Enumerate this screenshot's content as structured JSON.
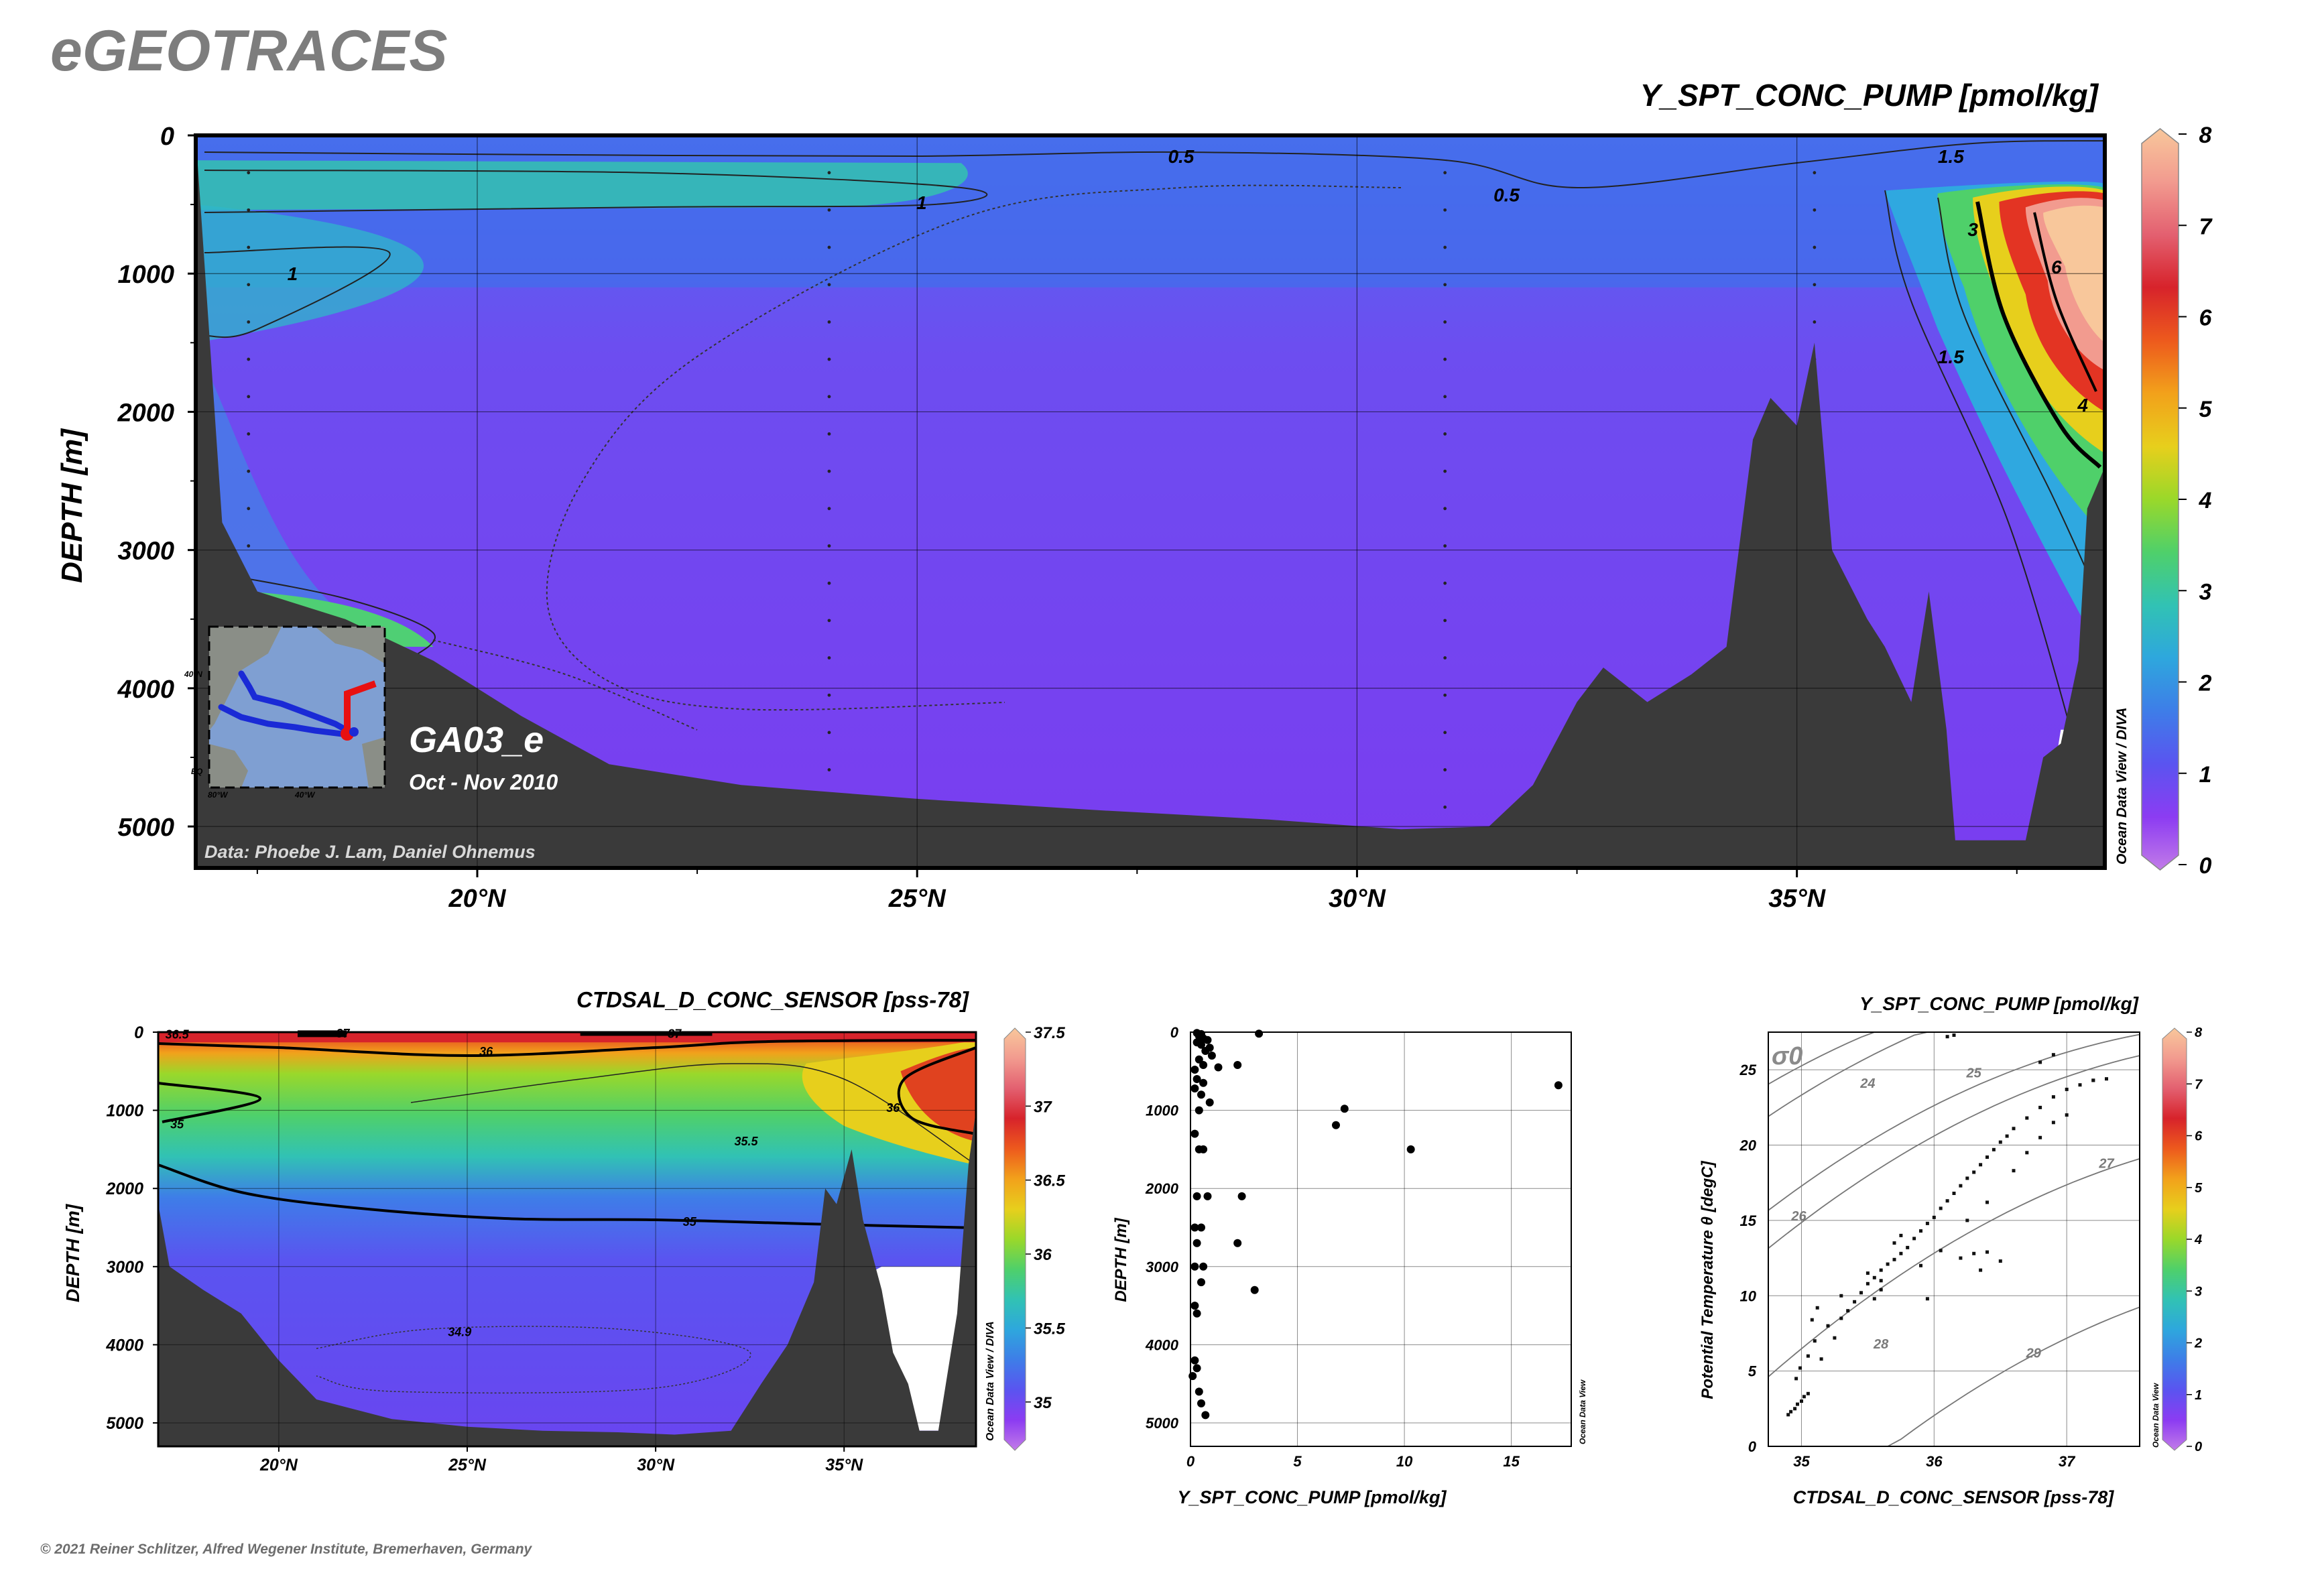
{
  "app_title": "eGEOTRACES",
  "copyright": "© 2021 Reiner Schlitzer, Alfred Wegener Institute, Bremerhaven, Germany",
  "colors": {
    "land": "#3a3a3a",
    "cmap": [
      "#c27be8",
      "#8c3cf2",
      "#5a54f0",
      "#3e7de8",
      "#2ea7dd",
      "#31c2b4",
      "#4fd06a",
      "#9ad82a",
      "#e7cf1c",
      "#f2a11b",
      "#ed5a1d",
      "#d7232b",
      "#e36070",
      "#f29b8f",
      "#f8c79b"
    ]
  },
  "chart_data": [
    {
      "id": "main-section",
      "type": "heatmap",
      "title": "Y_SPT_CONC_PUMP [pmol/kg]",
      "xlabel": "",
      "ylabel": "DEPTH [m]",
      "x_ticks": [
        "20°N",
        "25°N",
        "30°N",
        "35°N"
      ],
      "x_tick_values": [
        20,
        25,
        30,
        35
      ],
      "xlim": [
        16.8,
        38.5
      ],
      "y_ticks": [
        "0",
        "1000",
        "2000",
        "3000",
        "4000",
        "5000"
      ],
      "y_tick_values": [
        0,
        1000,
        2000,
        3000,
        4000,
        5000
      ],
      "ylim": [
        0,
        5300
      ],
      "colorbar": {
        "ticks": [
          "0",
          "1",
          "2",
          "3",
          "4",
          "5",
          "6",
          "7",
          "8"
        ],
        "range": [
          0,
          8
        ],
        "label": "Ocean Data View / DIVA"
      },
      "contour_labels": [
        "0.5",
        "0.5",
        "1",
        "1",
        "1.5",
        "3",
        "4",
        "6",
        "1.5"
      ],
      "cruise": "GA03_e",
      "dates": "Oct - Nov 2010",
      "credit": "Data: Phoebe J. Lam, Daniel Ohnemus",
      "inset": {
        "lat_label": "40°N",
        "lat_label2": "EQ",
        "lon_labels": [
          "80°W",
          "40°W"
        ]
      },
      "bathymetry": [
        [
          16.8,
          0
        ],
        [
          17.1,
          2800
        ],
        [
          17.5,
          3300
        ],
        [
          18.5,
          3500
        ],
        [
          19.5,
          3800
        ],
        [
          20.5,
          4200
        ],
        [
          21.5,
          4550
        ],
        [
          23,
          4700
        ],
        [
          25,
          4800
        ],
        [
          27,
          4880
        ],
        [
          29,
          4950
        ],
        [
          30.5,
          5020
        ],
        [
          31.5,
          5000
        ],
        [
          32,
          4700
        ],
        [
          32.5,
          4100
        ],
        [
          32.8,
          3850
        ],
        [
          33.3,
          4100
        ],
        [
          33.8,
          3900
        ],
        [
          34.2,
          3700
        ],
        [
          34.5,
          2200
        ],
        [
          34.7,
          1900
        ],
        [
          35.0,
          2100
        ],
        [
          35.2,
          1500
        ],
        [
          35.4,
          3000
        ],
        [
          35.8,
          3500
        ],
        [
          36.0,
          3700
        ],
        [
          36.3,
          4100
        ],
        [
          36.5,
          3300
        ],
        [
          36.7,
          4300
        ],
        [
          36.8,
          5100
        ],
        [
          37.6,
          5100
        ],
        [
          37.8,
          4500
        ],
        [
          38.0,
          4400
        ],
        [
          38.2,
          3800
        ],
        [
          38.3,
          2700
        ],
        [
          38.5,
          2400
        ]
      ]
    },
    {
      "id": "salinity-section",
      "type": "heatmap",
      "title": "CTDSAL_D_CONC_SENSOR [pss-78]",
      "ylabel": "DEPTH [m]",
      "x_ticks": [
        "20°N",
        "25°N",
        "30°N",
        "35°N"
      ],
      "x_tick_values": [
        20,
        25,
        30,
        35
      ],
      "xlim": [
        16.8,
        38.5
      ],
      "y_ticks": [
        "0",
        "1000",
        "2000",
        "3000",
        "4000",
        "5000"
      ],
      "y_tick_values": [
        0,
        1000,
        2000,
        3000,
        4000,
        5000
      ],
      "ylim": [
        0,
        5300
      ],
      "colorbar": {
        "ticks": [
          "35",
          "35.5",
          "36",
          "36.5",
          "37",
          "37.5"
        ],
        "range": [
          34.7,
          37.5
        ],
        "label": "Ocean Data View / DIVA"
      },
      "contour_labels": [
        "36.5",
        "37",
        "37",
        "36",
        "36",
        "35.5",
        "35",
        "35",
        "34.9"
      ],
      "bathymetry": [
        [
          16.8,
          2200
        ],
        [
          17.1,
          3000
        ],
        [
          18.0,
          3300
        ],
        [
          19.0,
          3600
        ],
        [
          20.0,
          4200
        ],
        [
          21.0,
          4700
        ],
        [
          23,
          4950
        ],
        [
          25,
          5050
        ],
        [
          27,
          5100
        ],
        [
          29,
          5120
        ],
        [
          30.5,
          5150
        ],
        [
          32,
          5100
        ],
        [
          32.8,
          4500
        ],
        [
          33.5,
          4000
        ],
        [
          34.2,
          3200
        ],
        [
          34.5,
          2000
        ],
        [
          34.8,
          2200
        ],
        [
          35.2,
          1500
        ],
        [
          35.5,
          2400
        ],
        [
          36.0,
          3300
        ],
        [
          36.3,
          4100
        ],
        [
          36.7,
          4500
        ],
        [
          37,
          5100
        ],
        [
          37.5,
          5100
        ],
        [
          38,
          3600
        ],
        [
          38.3,
          1700
        ],
        [
          38.5,
          1000
        ]
      ]
    },
    {
      "id": "profile-scatter",
      "type": "scatter",
      "xlabel": "Y_SPT_CONC_PUMP [pmol/kg]",
      "ylabel": "DEPTH [m]",
      "xlim": [
        0,
        17.8
      ],
      "ylim": [
        0,
        5300
      ],
      "x_ticks": [
        "0",
        "5",
        "10",
        "15"
      ],
      "x_tick_values": [
        0,
        5,
        10,
        15
      ],
      "y_ticks": [
        "0",
        "1000",
        "2000",
        "3000",
        "4000",
        "5000"
      ],
      "y_tick_values": [
        0,
        1000,
        2000,
        3000,
        4000,
        5000
      ],
      "side_label": "Ocean Data View",
      "points": [
        [
          0.3,
          10
        ],
        [
          0.5,
          25
        ],
        [
          0.4,
          50
        ],
        [
          0.6,
          80
        ],
        [
          0.8,
          100
        ],
        [
          0.3,
          130
        ],
        [
          0.5,
          160
        ],
        [
          0.9,
          200
        ],
        [
          0.7,
          240
        ],
        [
          1.0,
          300
        ],
        [
          0.4,
          350
        ],
        [
          0.6,
          420
        ],
        [
          1.3,
          450
        ],
        [
          0.2,
          480
        ],
        [
          2.2,
          420
        ],
        [
          0.3,
          600
        ],
        [
          0.6,
          650
        ],
        [
          3.2,
          20
        ],
        [
          17.2,
          680
        ],
        [
          0.2,
          720
        ],
        [
          0.5,
          800
        ],
        [
          0.9,
          900
        ],
        [
          7.2,
          980
        ],
        [
          0.4,
          1000
        ],
        [
          6.8,
          1190
        ],
        [
          0.2,
          1300
        ],
        [
          10.3,
          1500
        ],
        [
          0.6,
          1500
        ],
        [
          0.4,
          1500
        ],
        [
          0.3,
          2100
        ],
        [
          0.8,
          2100
        ],
        [
          2.4,
          2100
        ],
        [
          0.5,
          2500
        ],
        [
          0.2,
          2500
        ],
        [
          2.2,
          2700
        ],
        [
          0.3,
          2700
        ],
        [
          0.6,
          3000
        ],
        [
          0.2,
          3000
        ],
        [
          3.0,
          3300
        ],
        [
          0.5,
          3200
        ],
        [
          0.2,
          3500
        ],
        [
          0.3,
          3600
        ],
        [
          0.2,
          4200
        ],
        [
          0.3,
          4300
        ],
        [
          0.1,
          4400
        ],
        [
          0.4,
          4600
        ],
        [
          0.5,
          4750
        ],
        [
          0.7,
          4900
        ]
      ]
    },
    {
      "id": "ts-scatter",
      "type": "scatter",
      "title": "Y_SPT_CONC_PUMP [pmol/kg]",
      "xlabel": "CTDSAL_D_CONC_SENSOR [pss-78]",
      "ylabel": "Potential Temperature θ [degC]",
      "xlim": [
        34.75,
        37.55
      ],
      "ylim": [
        0,
        27.5
      ],
      "x_ticks": [
        "35",
        "36",
        "37"
      ],
      "x_tick_values": [
        35,
        36,
        37
      ],
      "y_ticks": [
        "0",
        "5",
        "10",
        "15",
        "20",
        "25"
      ],
      "y_tick_values": [
        0,
        5,
        10,
        15,
        20,
        25
      ],
      "sigma_label": "σ0",
      "sigma_contours": [
        "24",
        "25",
        "26",
        "27",
        "28",
        "29"
      ],
      "colorbar": {
        "ticks": [
          "0",
          "1",
          "2",
          "3",
          "4",
          "5",
          "6",
          "7",
          "8"
        ],
        "range": [
          0,
          8
        ],
        "label": "Ocean Data View"
      },
      "points": [
        [
          34.9,
          2.1
        ],
        [
          34.92,
          2.3
        ],
        [
          34.95,
          2.5
        ],
        [
          34.97,
          2.8
        ],
        [
          35.0,
          3.0
        ],
        [
          35.02,
          3.3
        ],
        [
          35.05,
          3.5
        ],
        [
          34.96,
          4.5
        ],
        [
          34.99,
          5.2
        ],
        [
          35.05,
          6.0
        ],
        [
          35.1,
          7.0
        ],
        [
          35.2,
          8.0
        ],
        [
          35.3,
          8.5
        ],
        [
          35.35,
          9.0
        ],
        [
          35.4,
          9.6
        ],
        [
          35.45,
          10.2
        ],
        [
          35.5,
          10.8
        ],
        [
          35.55,
          11.2
        ],
        [
          35.6,
          11.7
        ],
        [
          35.65,
          12.1
        ],
        [
          35.7,
          12.4
        ],
        [
          35.75,
          12.8
        ],
        [
          35.8,
          13.2
        ],
        [
          35.85,
          13.8
        ],
        [
          35.9,
          14.3
        ],
        [
          35.95,
          14.8
        ],
        [
          36.0,
          15.2
        ],
        [
          36.05,
          15.8
        ],
        [
          36.1,
          16.3
        ],
        [
          36.15,
          16.8
        ],
        [
          36.2,
          17.3
        ],
        [
          36.25,
          17.8
        ],
        [
          36.3,
          18.2
        ],
        [
          36.35,
          18.7
        ],
        [
          36.4,
          19.2
        ],
        [
          36.45,
          19.7
        ],
        [
          36.5,
          20.2
        ],
        [
          36.55,
          20.6
        ],
        [
          36.6,
          21.1
        ],
        [
          36.7,
          21.8
        ],
        [
          36.8,
          22.5
        ],
        [
          36.9,
          23.2
        ],
        [
          37.0,
          23.7
        ],
        [
          37.1,
          24.0
        ],
        [
          37.2,
          24.3
        ],
        [
          36.8,
          25.5
        ],
        [
          36.9,
          26.0
        ],
        [
          36.1,
          27.2
        ],
        [
          36.15,
          27.3
        ],
        [
          36.2,
          12.5
        ],
        [
          36.3,
          12.8
        ],
        [
          36.4,
          12.9
        ],
        [
          36.5,
          12.3
        ],
        [
          36.35,
          11.7
        ],
        [
          35.6,
          11.0
        ],
        [
          35.5,
          11.5
        ],
        [
          35.7,
          13.5
        ],
        [
          35.75,
          14.0
        ],
        [
          35.3,
          10.0
        ],
        [
          35.25,
          7.2
        ],
        [
          35.15,
          5.8
        ],
        [
          35.08,
          8.4
        ],
        [
          35.12,
          9.2
        ],
        [
          35.55,
          9.8
        ],
        [
          35.6,
          10.4
        ],
        [
          35.9,
          12.0
        ],
        [
          35.95,
          9.8
        ],
        [
          36.05,
          13.0
        ],
        [
          36.25,
          15.0
        ],
        [
          36.4,
          16.2
        ],
        [
          36.6,
          18.3
        ],
        [
          36.7,
          19.5
        ],
        [
          36.8,
          20.5
        ],
        [
          36.9,
          21.5
        ],
        [
          37.0,
          22.0
        ],
        [
          37.2,
          24.3
        ],
        [
          37.3,
          24.4
        ]
      ]
    }
  ]
}
